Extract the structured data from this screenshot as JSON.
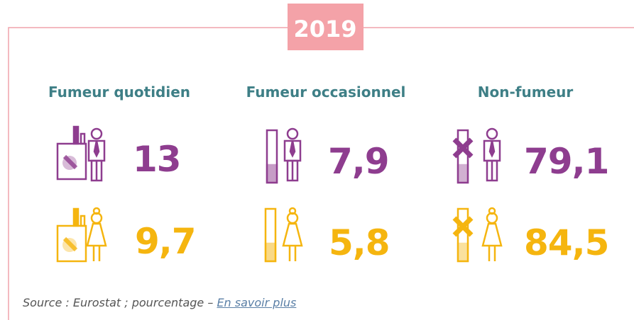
{
  "year": "2019",
  "columns": [
    {
      "title": "Fumeur quotidien",
      "men": "13",
      "women": "9,7"
    },
    {
      "title": "Fumeur occasionnel",
      "men": "7,9",
      "women": "5,8"
    },
    {
      "title": "Non-fumeur",
      "men": "79,1",
      "women": "84,5"
    }
  ],
  "source": {
    "text": "Source : Eurostat ; pourcentage –",
    "link": "En savoir plus"
  }
}
